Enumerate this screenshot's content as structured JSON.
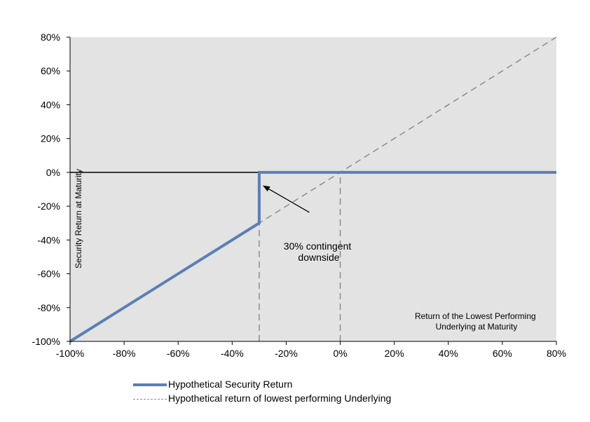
{
  "chart_data": {
    "type": "line",
    "title": "",
    "ylabel": "Security Return at Maturity",
    "xlabel": [
      "Return of the Lowest Performing",
      "Underlying at Maturity"
    ],
    "xlim": [
      -100,
      80
    ],
    "ylim": [
      -100,
      80
    ],
    "x_ticks": [
      "-100%",
      "-80%",
      "-60%",
      "-40%",
      "-20%",
      "0%",
      "20%",
      "40%",
      "60%",
      "80%"
    ],
    "y_ticks": [
      "-100%",
      "-80%",
      "-60%",
      "-40%",
      "-20%",
      "0%",
      "20%",
      "40%",
      "60%",
      "80%"
    ],
    "grid": false,
    "plot_background": "#e3e3e3",
    "legend_position": "bottom",
    "series": [
      {
        "name": "Hypothetical Security Return",
        "style": "solid",
        "color": "#5b7fb5",
        "x": [
          -100,
          -30,
          -30,
          80
        ],
        "y": [
          -100,
          -30,
          0,
          0
        ]
      },
      {
        "name": "Hypothetical return of lowest performing Underlying",
        "style": "dashed",
        "color": "#8c8c8c",
        "x": [
          -100,
          80
        ],
        "y": [
          -100,
          80
        ]
      }
    ],
    "reference_lines": [
      {
        "orientation": "vertical",
        "x": -30,
        "y_from": -100,
        "y_to": -30
      },
      {
        "orientation": "vertical",
        "x": 0,
        "y_from": -100,
        "y_to": 0
      },
      {
        "orientation": "horizontal",
        "y": 0
      }
    ],
    "annotation": {
      "lines": [
        "30% contingent",
        "downside"
      ],
      "arrow_to": {
        "x": -30,
        "y": -8
      },
      "arrow_from": {
        "x": -13,
        "y": -22
      }
    }
  }
}
